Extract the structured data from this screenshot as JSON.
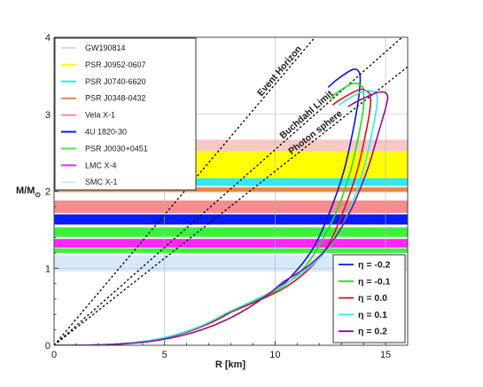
{
  "chart_data": {
    "type": "line",
    "xlabel": "R [km]",
    "ylabel": "M/M",
    "ylabel_sub": "⊙",
    "xlim": [
      0,
      16
    ],
    "ylim": [
      0,
      4
    ],
    "xticks": [
      "0",
      "5",
      "10",
      "15"
    ],
    "yticks": [
      "0",
      "1",
      "2",
      "3",
      "4"
    ],
    "grid": true,
    "bands": [
      {
        "name": "GW190814",
        "color": "#f7c8c8",
        "range": [
          2.5,
          2.67
        ],
        "legend_color": "#f6d2d2"
      },
      {
        "name": "PSR J0952-0607",
        "color": "#ffff00",
        "range": [
          2.17,
          2.52
        ]
      },
      {
        "name": "PSR J0740-6620",
        "color": "#2fe9ef",
        "range": [
          2.07,
          2.17
        ]
      },
      {
        "name": "PSR J0348-0432",
        "color": "#e9873c",
        "range": [
          1.99,
          2.05
        ]
      },
      {
        "name": "Vela X-1",
        "color": "#f48d8d",
        "range": [
          1.72,
          1.88
        ]
      },
      {
        "name": "4U 1820-30",
        "color": "#0a1aff",
        "range": [
          1.57,
          1.7
        ]
      },
      {
        "name": "PSR J0030+0451",
        "color": "#3ef03e",
        "range": [
          1.41,
          1.53
        ]
      },
      {
        "name": "LMC X-4",
        "color": "#ff26ff",
        "range": [
          1.27,
          1.38
        ]
      },
      {
        "name": "SMC X-1",
        "color": "#d7e8fb",
        "range": [
          0.96,
          1.17
        ]
      }
    ],
    "band_stripes": [
      {
        "name": "Vela X-1",
        "color": "#f48d8d",
        "range": [
          1.72,
          1.88
        ]
      },
      {
        "name": "4U 1820-30",
        "color": "#0a1aff",
        "range": [
          1.57,
          1.7
        ]
      },
      {
        "name": "PSR J0030+0451",
        "color": "#3ef03e",
        "range": [
          1.41,
          1.53
        ]
      },
      {
        "name": "LMC X-4",
        "color": "#ff26ff",
        "range": [
          1.27,
          1.38
        ]
      },
      {
        "name": "PSR J0030+0451",
        "color": "#3ef03e",
        "range": [
          1.2,
          1.26
        ]
      }
    ],
    "reference_lines": [
      {
        "name": "Event Horizon",
        "slope_msun_per_km": 0.339
      },
      {
        "name": "Buchdahl Limit",
        "slope_msun_per_km": 0.254
      },
      {
        "name": "Photon sphere",
        "slope_msun_per_km": 0.226
      }
    ],
    "series": [
      {
        "label": "η = -0.2",
        "color": "#0a14d9",
        "x": [
          8.0,
          10.0,
          11.0,
          11.8,
          12.5,
          13.1,
          13.5,
          13.75,
          13.85,
          13.8,
          13.5,
          12.8,
          12.4
        ],
        "y": [
          0.44,
          0.72,
          0.98,
          1.3,
          1.75,
          2.25,
          2.75,
          3.15,
          3.42,
          3.55,
          3.58,
          3.45,
          3.35
        ]
      },
      {
        "label": "η = -0.1",
        "color": "#22dd22",
        "x": [
          8.0,
          10.0,
          11.2,
          12.0,
          12.8,
          13.4,
          13.8,
          14.0,
          14.0,
          13.9,
          13.5,
          12.8,
          12.5
        ],
        "y": [
          0.43,
          0.7,
          0.97,
          1.3,
          1.75,
          2.25,
          2.75,
          3.1,
          3.3,
          3.37,
          3.4,
          3.28,
          3.2
        ]
      },
      {
        "label": "η =  0.0",
        "color": "#dd1111",
        "x": [
          8.0,
          10.2,
          11.5,
          12.4,
          13.1,
          13.7,
          14.1,
          14.3,
          14.3,
          14.15,
          13.8,
          13.0,
          12.6
        ],
        "y": [
          0.43,
          0.71,
          0.98,
          1.3,
          1.75,
          2.25,
          2.75,
          3.08,
          3.25,
          3.3,
          3.32,
          3.2,
          3.12
        ]
      },
      {
        "label": "η =  0.1",
        "color": "#2fe9ef",
        "x": [
          7.8,
          10.0,
          11.5,
          12.6,
          13.4,
          14.0,
          14.4,
          14.6,
          14.6,
          14.4,
          14.0,
          13.3,
          12.9
        ],
        "y": [
          0.42,
          0.72,
          1.0,
          1.33,
          1.78,
          2.28,
          2.78,
          3.1,
          3.25,
          3.3,
          3.3,
          3.2,
          3.12
        ]
      },
      {
        "label": "η =  0.2",
        "color": "#8a0f9b",
        "x": [
          10.4,
          11.6,
          12.6,
          13.5,
          14.2,
          14.7,
          15.0,
          15.1,
          15.0,
          14.8,
          14.5,
          13.8,
          13.3
        ],
        "y": [
          0.83,
          1.05,
          1.35,
          1.8,
          2.3,
          2.78,
          3.08,
          3.22,
          3.28,
          3.29,
          3.27,
          3.18,
          3.1
        ]
      }
    ]
  }
}
